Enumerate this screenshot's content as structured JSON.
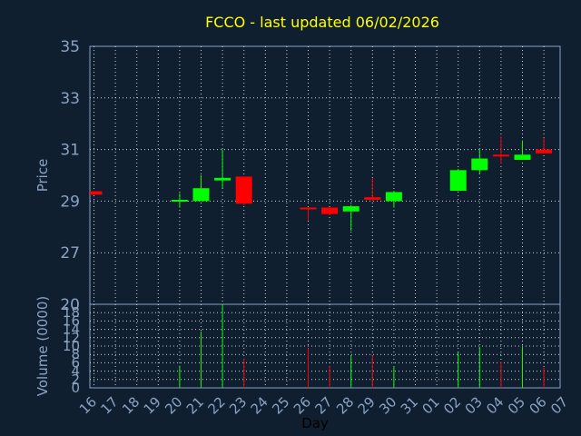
{
  "chart_data": [
    {
      "type": "candlestick",
      "title": "FCCO - last updated 06/02/2026",
      "ylabel": "Price",
      "ylim": [
        25,
        35
      ],
      "yticks": [
        "35",
        "33",
        "31",
        "29",
        "27"
      ],
      "grid": true,
      "colors": {
        "up": "#00ff00",
        "down": "#ff0000",
        "background": "#0f1f30",
        "grid": "#ffffff",
        "text": "#8aa3c2",
        "title": "#ffff00"
      },
      "candles": [
        {
          "day": "16",
          "open": 29.38,
          "high": 29.38,
          "low": 29.25,
          "close": 29.25
        },
        {
          "day": "20",
          "open": 29.0,
          "high": 29.3,
          "low": 28.75,
          "close": 29.05
        },
        {
          "day": "21",
          "open": 29.0,
          "high": 30.0,
          "low": 29.0,
          "close": 29.5
        },
        {
          "day": "22",
          "open": 29.8,
          "high": 31.0,
          "low": 29.5,
          "close": 29.9
        },
        {
          "day": "23",
          "open": 29.95,
          "high": 29.95,
          "low": 28.85,
          "close": 28.9
        },
        {
          "day": "26",
          "open": 28.75,
          "high": 28.75,
          "low": 28.25,
          "close": 28.7
        },
        {
          "day": "27",
          "open": 28.75,
          "high": 28.75,
          "low": 28.45,
          "close": 28.5
        },
        {
          "day": "28",
          "open": 28.6,
          "high": 28.85,
          "low": 27.85,
          "close": 28.8
        },
        {
          "day": "29",
          "open": 29.15,
          "high": 29.9,
          "low": 29.0,
          "close": 29.05
        },
        {
          "day": "30",
          "open": 29.0,
          "high": 29.4,
          "low": 28.75,
          "close": 29.35
        },
        {
          "day": "02",
          "open": 29.4,
          "high": 30.25,
          "low": 29.4,
          "close": 30.2
        },
        {
          "day": "03",
          "open": 30.2,
          "high": 31.0,
          "low": 30.05,
          "close": 30.65
        },
        {
          "day": "04",
          "open": 30.8,
          "high": 31.5,
          "low": 30.45,
          "close": 30.75
        },
        {
          "day": "05",
          "open": 30.6,
          "high": 31.35,
          "low": 30.6,
          "close": 30.8
        },
        {
          "day": "06",
          "open": 31.0,
          "high": 31.45,
          "low": 30.85,
          "close": 30.85
        }
      ]
    },
    {
      "type": "bar",
      "ylabel": "Volume (0000)",
      "xlabel": "Day",
      "ylim": [
        0,
        20
      ],
      "yticks": [
        "20",
        "18",
        "16",
        "14",
        "12",
        "10",
        "8",
        "6",
        "4",
        "2",
        "0"
      ],
      "categories": [
        "16",
        "17",
        "18",
        "19",
        "20",
        "21",
        "22",
        "23",
        "24",
        "25",
        "26",
        "27",
        "28",
        "29",
        "30",
        "31",
        "01",
        "02",
        "03",
        "04",
        "05",
        "06",
        "07"
      ],
      "values": [
        {
          "day": "16",
          "volume": 0
        },
        {
          "day": "20",
          "volume": 5.3,
          "direction": "up"
        },
        {
          "day": "21",
          "volume": 13.5,
          "direction": "up"
        },
        {
          "day": "22",
          "volume": 20.0,
          "direction": "up"
        },
        {
          "day": "23",
          "volume": 7.0,
          "direction": "down"
        },
        {
          "day": "26",
          "volume": 9.5,
          "direction": "down"
        },
        {
          "day": "27",
          "volume": 5.2,
          "direction": "down"
        },
        {
          "day": "28",
          "volume": 7.8,
          "direction": "up"
        },
        {
          "day": "29",
          "volume": 7.8,
          "direction": "down"
        },
        {
          "day": "30",
          "volume": 5.2,
          "direction": "up"
        },
        {
          "day": "02",
          "volume": 8.5,
          "direction": "up"
        },
        {
          "day": "03",
          "volume": 9.8,
          "direction": "up"
        },
        {
          "day": "04",
          "volume": 6.2,
          "direction": "down"
        },
        {
          "day": "05",
          "volume": 9.8,
          "direction": "up"
        },
        {
          "day": "06",
          "volume": 4.8,
          "direction": "down"
        }
      ]
    }
  ]
}
